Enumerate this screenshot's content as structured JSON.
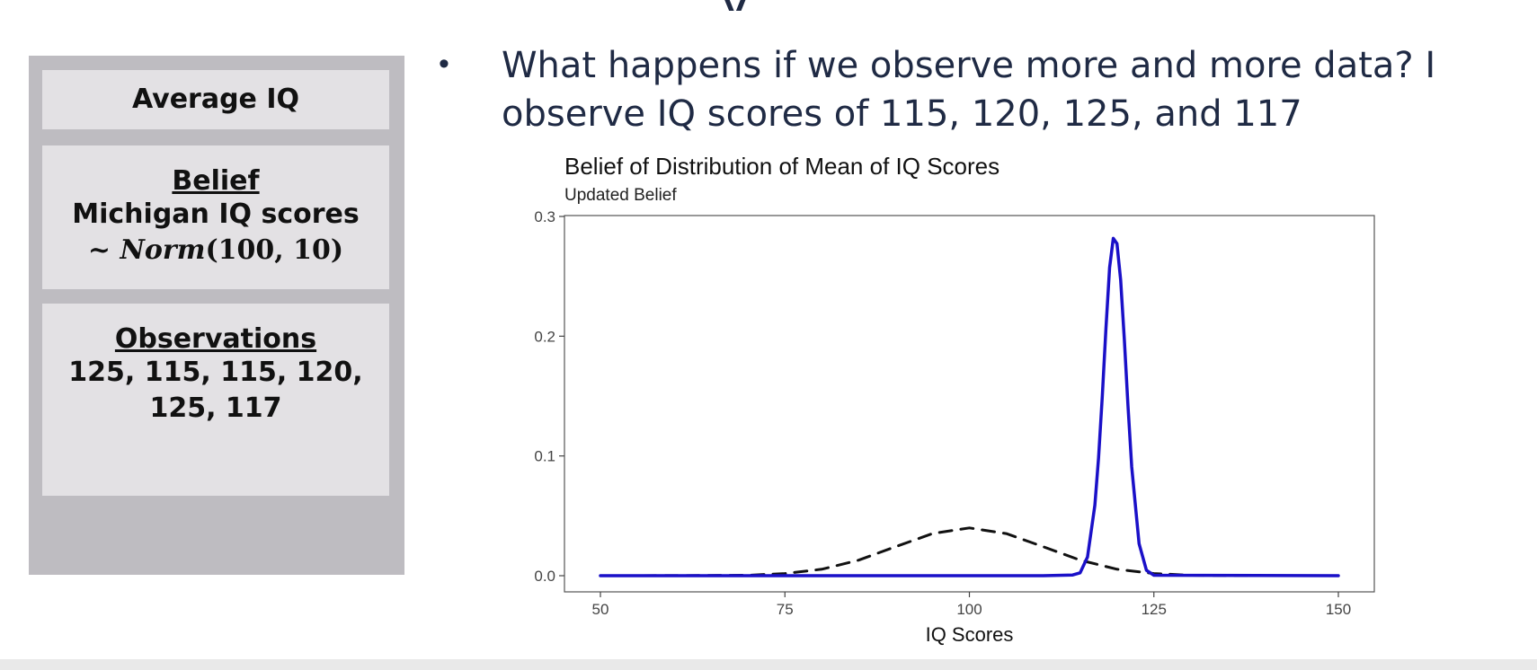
{
  "slide": {
    "bullet": "What happens if we observe more and more data? I observe IQ scores of 115, 120, 125, and 117"
  },
  "panel": {
    "average_title": "Average IQ",
    "belief": {
      "heading": "Belief",
      "line1": "Michigan IQ scores",
      "dist_tilde": "~",
      "dist_name": "Norm",
      "dist_params": "(100, 10)"
    },
    "observations": {
      "heading": "Observations",
      "line1": "125, 115, 115, 120,",
      "line2": "125, 117"
    }
  },
  "chart_data": {
    "type": "line",
    "title": "Belief of Distribution of Mean of IQ Scores",
    "subtitle": "Updated Belief",
    "xlabel": "IQ Scores",
    "ylabel": "",
    "xlim": [
      50,
      150
    ],
    "ylim": [
      0,
      0.3
    ],
    "xticks": [
      50,
      75,
      100,
      125,
      150
    ],
    "yticks": [
      0.0,
      0.1,
      0.2,
      0.3
    ],
    "grid": false,
    "series": [
      {
        "style": "dashed",
        "color": "#111111",
        "x": [
          50,
          60,
          70,
          75,
          80,
          85,
          90,
          95,
          100,
          105,
          110,
          115,
          120,
          125,
          130,
          135,
          140,
          150
        ],
        "y": [
          0.0,
          0.0001,
          0.0004,
          0.0018,
          0.0054,
          0.013,
          0.0242,
          0.0352,
          0.0399,
          0.0352,
          0.0242,
          0.013,
          0.0054,
          0.0018,
          0.0004,
          0.0001,
          0.0,
          0.0
        ]
      },
      {
        "style": "solid",
        "color": "#1a10c8",
        "x": [
          50,
          110,
          114,
          115,
          116,
          117,
          117.5,
          118,
          118.5,
          119,
          119.5,
          120,
          120.5,
          121,
          121.5,
          122,
          123,
          124,
          125,
          150
        ],
        "y": [
          0.0,
          0.0,
          0.0006,
          0.0024,
          0.0156,
          0.0589,
          0.0983,
          0.149,
          0.2061,
          0.2573,
          0.2817,
          0.2773,
          0.2468,
          0.1971,
          0.1412,
          0.0908,
          0.0267,
          0.0045,
          0.0004,
          0.0
        ]
      }
    ]
  }
}
